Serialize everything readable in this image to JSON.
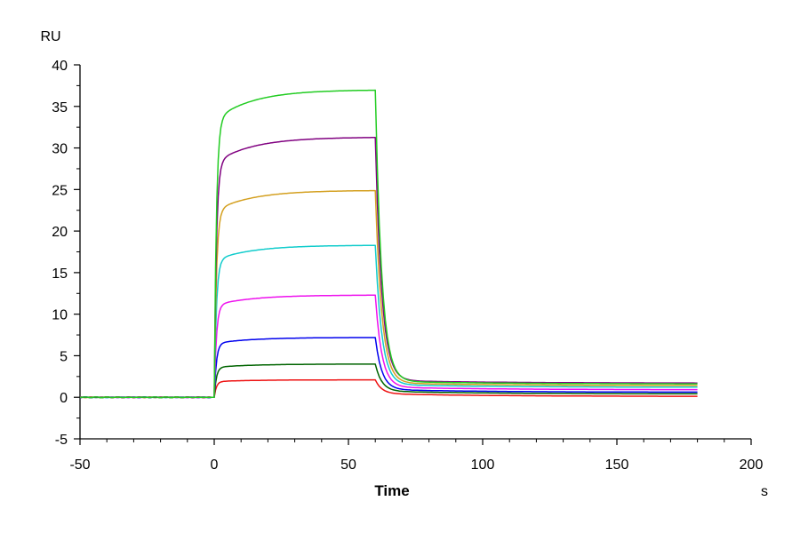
{
  "chart_data": {
    "type": "line",
    "title": "",
    "xlabel": "Time",
    "xunit": "s",
    "ylabel": "RU",
    "xlim": [
      -50,
      200
    ],
    "ylim": [
      -5,
      40
    ],
    "xticks": [
      -50,
      0,
      50,
      100,
      150,
      200
    ],
    "yticks": [
      -5,
      0,
      5,
      10,
      15,
      20,
      25,
      30,
      35,
      40
    ],
    "grid": false,
    "legend": "none",
    "association_start": 0,
    "dissociation_start": 60,
    "end_time": 180,
    "series": [
      {
        "color": "#ee1111",
        "plateau": 2.1,
        "tail": 0.1
      },
      {
        "color": "#006400",
        "plateau": 4.0,
        "tail": 0.4
      },
      {
        "color": "#0000ee",
        "plateau": 7.2,
        "tail": 0.6
      },
      {
        "color": "#ee11ee",
        "plateau": 12.3,
        "tail": 0.9
      },
      {
        "color": "#11cccc",
        "plateau": 18.3,
        "tail": 1.2
      },
      {
        "color": "#d4a020",
        "plateau": 24.9,
        "tail": 1.4
      },
      {
        "color": "#800080",
        "plateau": 31.3,
        "tail": 1.7
      },
      {
        "color": "#22cc22",
        "plateau": 37.0,
        "tail": 1.6
      }
    ]
  }
}
